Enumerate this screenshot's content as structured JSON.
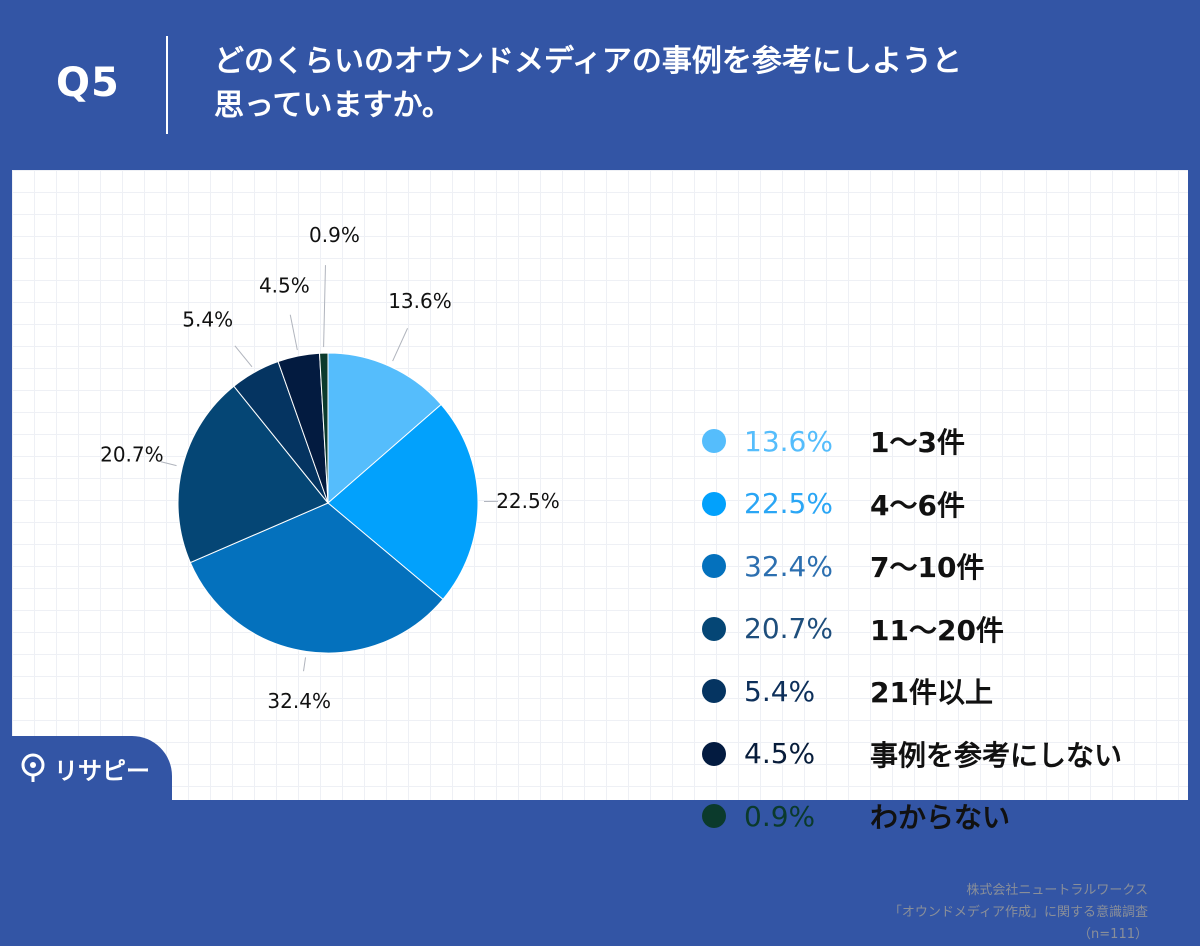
{
  "header": {
    "q_label": "Q5",
    "question_line1": "どのくらいのオウンドメディアの事例を参考にしようと",
    "question_line2": "思っていますか。"
  },
  "source": {
    "line1": "株式会社ニュートラルワークス",
    "line2": "「オウンドメディア作成」に関する意識調査",
    "line3": "（n=111）"
  },
  "logo": {
    "text": "リサピー"
  },
  "chart_data": {
    "type": "pie",
    "title": "",
    "start_angle": "12 o'clock",
    "direction": "clockwise",
    "legend_position": "right",
    "slices": [
      {
        "label": "1〜3件",
        "value": 13.6,
        "display": "13.6%",
        "color": "#55bdfc"
      },
      {
        "label": "4〜6件",
        "value": 22.5,
        "display": "22.5%",
        "color": "#02a1fc"
      },
      {
        "label": "7〜10件",
        "value": 32.4,
        "display": "32.4%",
        "color": "#0471bd"
      },
      {
        "label": "11〜20件",
        "value": 20.7,
        "display": "20.7%",
        "color": "#054675"
      },
      {
        "label": "21件以上",
        "value": 5.4,
        "display": "5.4%",
        "color": "#053461"
      },
      {
        "label": "事例を参考にしない",
        "value": 4.5,
        "display": "4.5%",
        "color": "#031b40"
      },
      {
        "label": "わからない",
        "value": 0.9,
        "display": "0.9%",
        "color": "#0b3a2c"
      }
    ],
    "legend_text_colors": [
      "#55bdfc",
      "#2aa6f5",
      "#2c6fb0",
      "#1e4e7c",
      "#0d2f5a",
      "#071c3a",
      "#0b3a2c"
    ]
  }
}
